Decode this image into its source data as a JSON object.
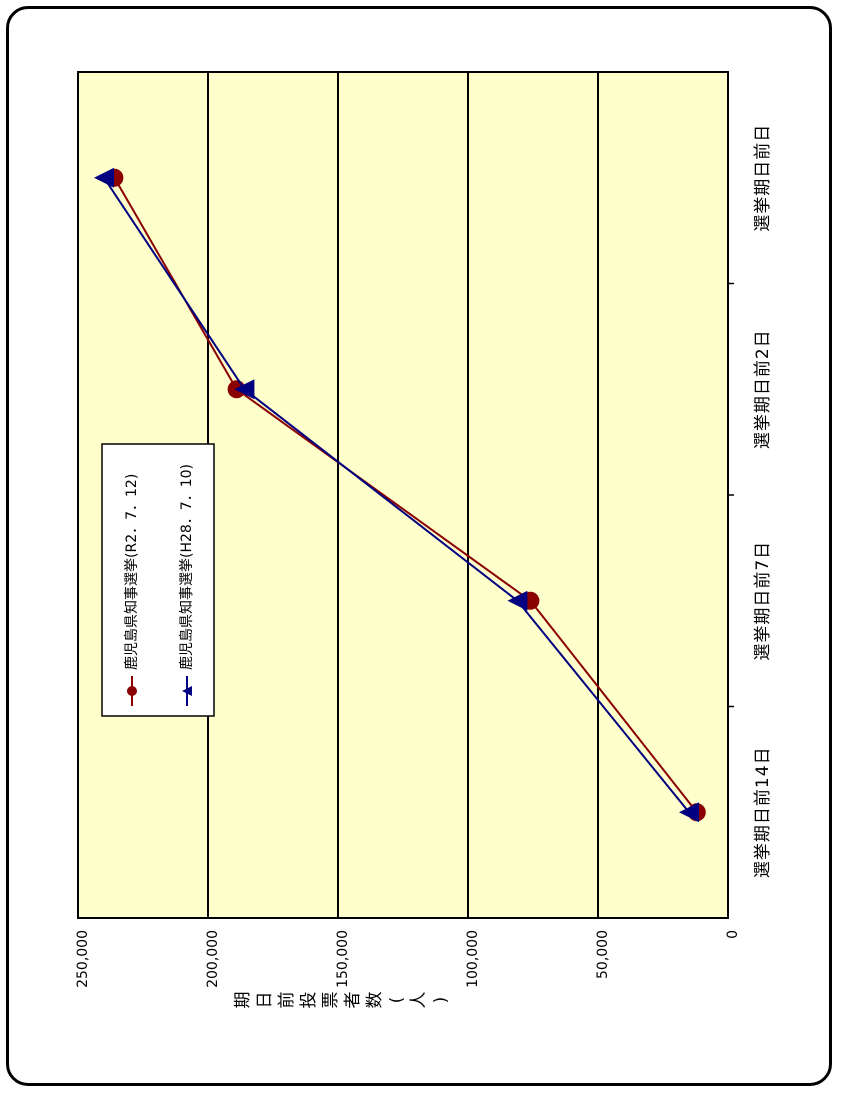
{
  "chart_data": {
    "type": "line",
    "categories": [
      "選挙期日前14日",
      "選挙期日前7日",
      "選挙期日前2日",
      "選挙期日前日"
    ],
    "series": [
      {
        "name": "鹿児島県知事選挙(R2．7．12)",
        "values": [
          12000,
          76000,
          189000,
          236000
        ],
        "color": "#8b0000",
        "marker": "circle"
      },
      {
        "name": "鹿児島県知事選挙(H28．7．10)",
        "values": [
          15000,
          81000,
          186000,
          240000
        ],
        "color": "#000080",
        "marker": "triangle"
      }
    ],
    "ylim": [
      0,
      250000
    ],
    "yticks": [
      "0",
      "50,000",
      "100,000",
      "150,000",
      "200,000",
      "250,000"
    ],
    "ylabel_chars": [
      "期",
      "日",
      "前",
      "投",
      "票",
      "者",
      "数",
      "(",
      "人",
      ")"
    ],
    "grid": true,
    "plot_color": "#ffffcc"
  }
}
